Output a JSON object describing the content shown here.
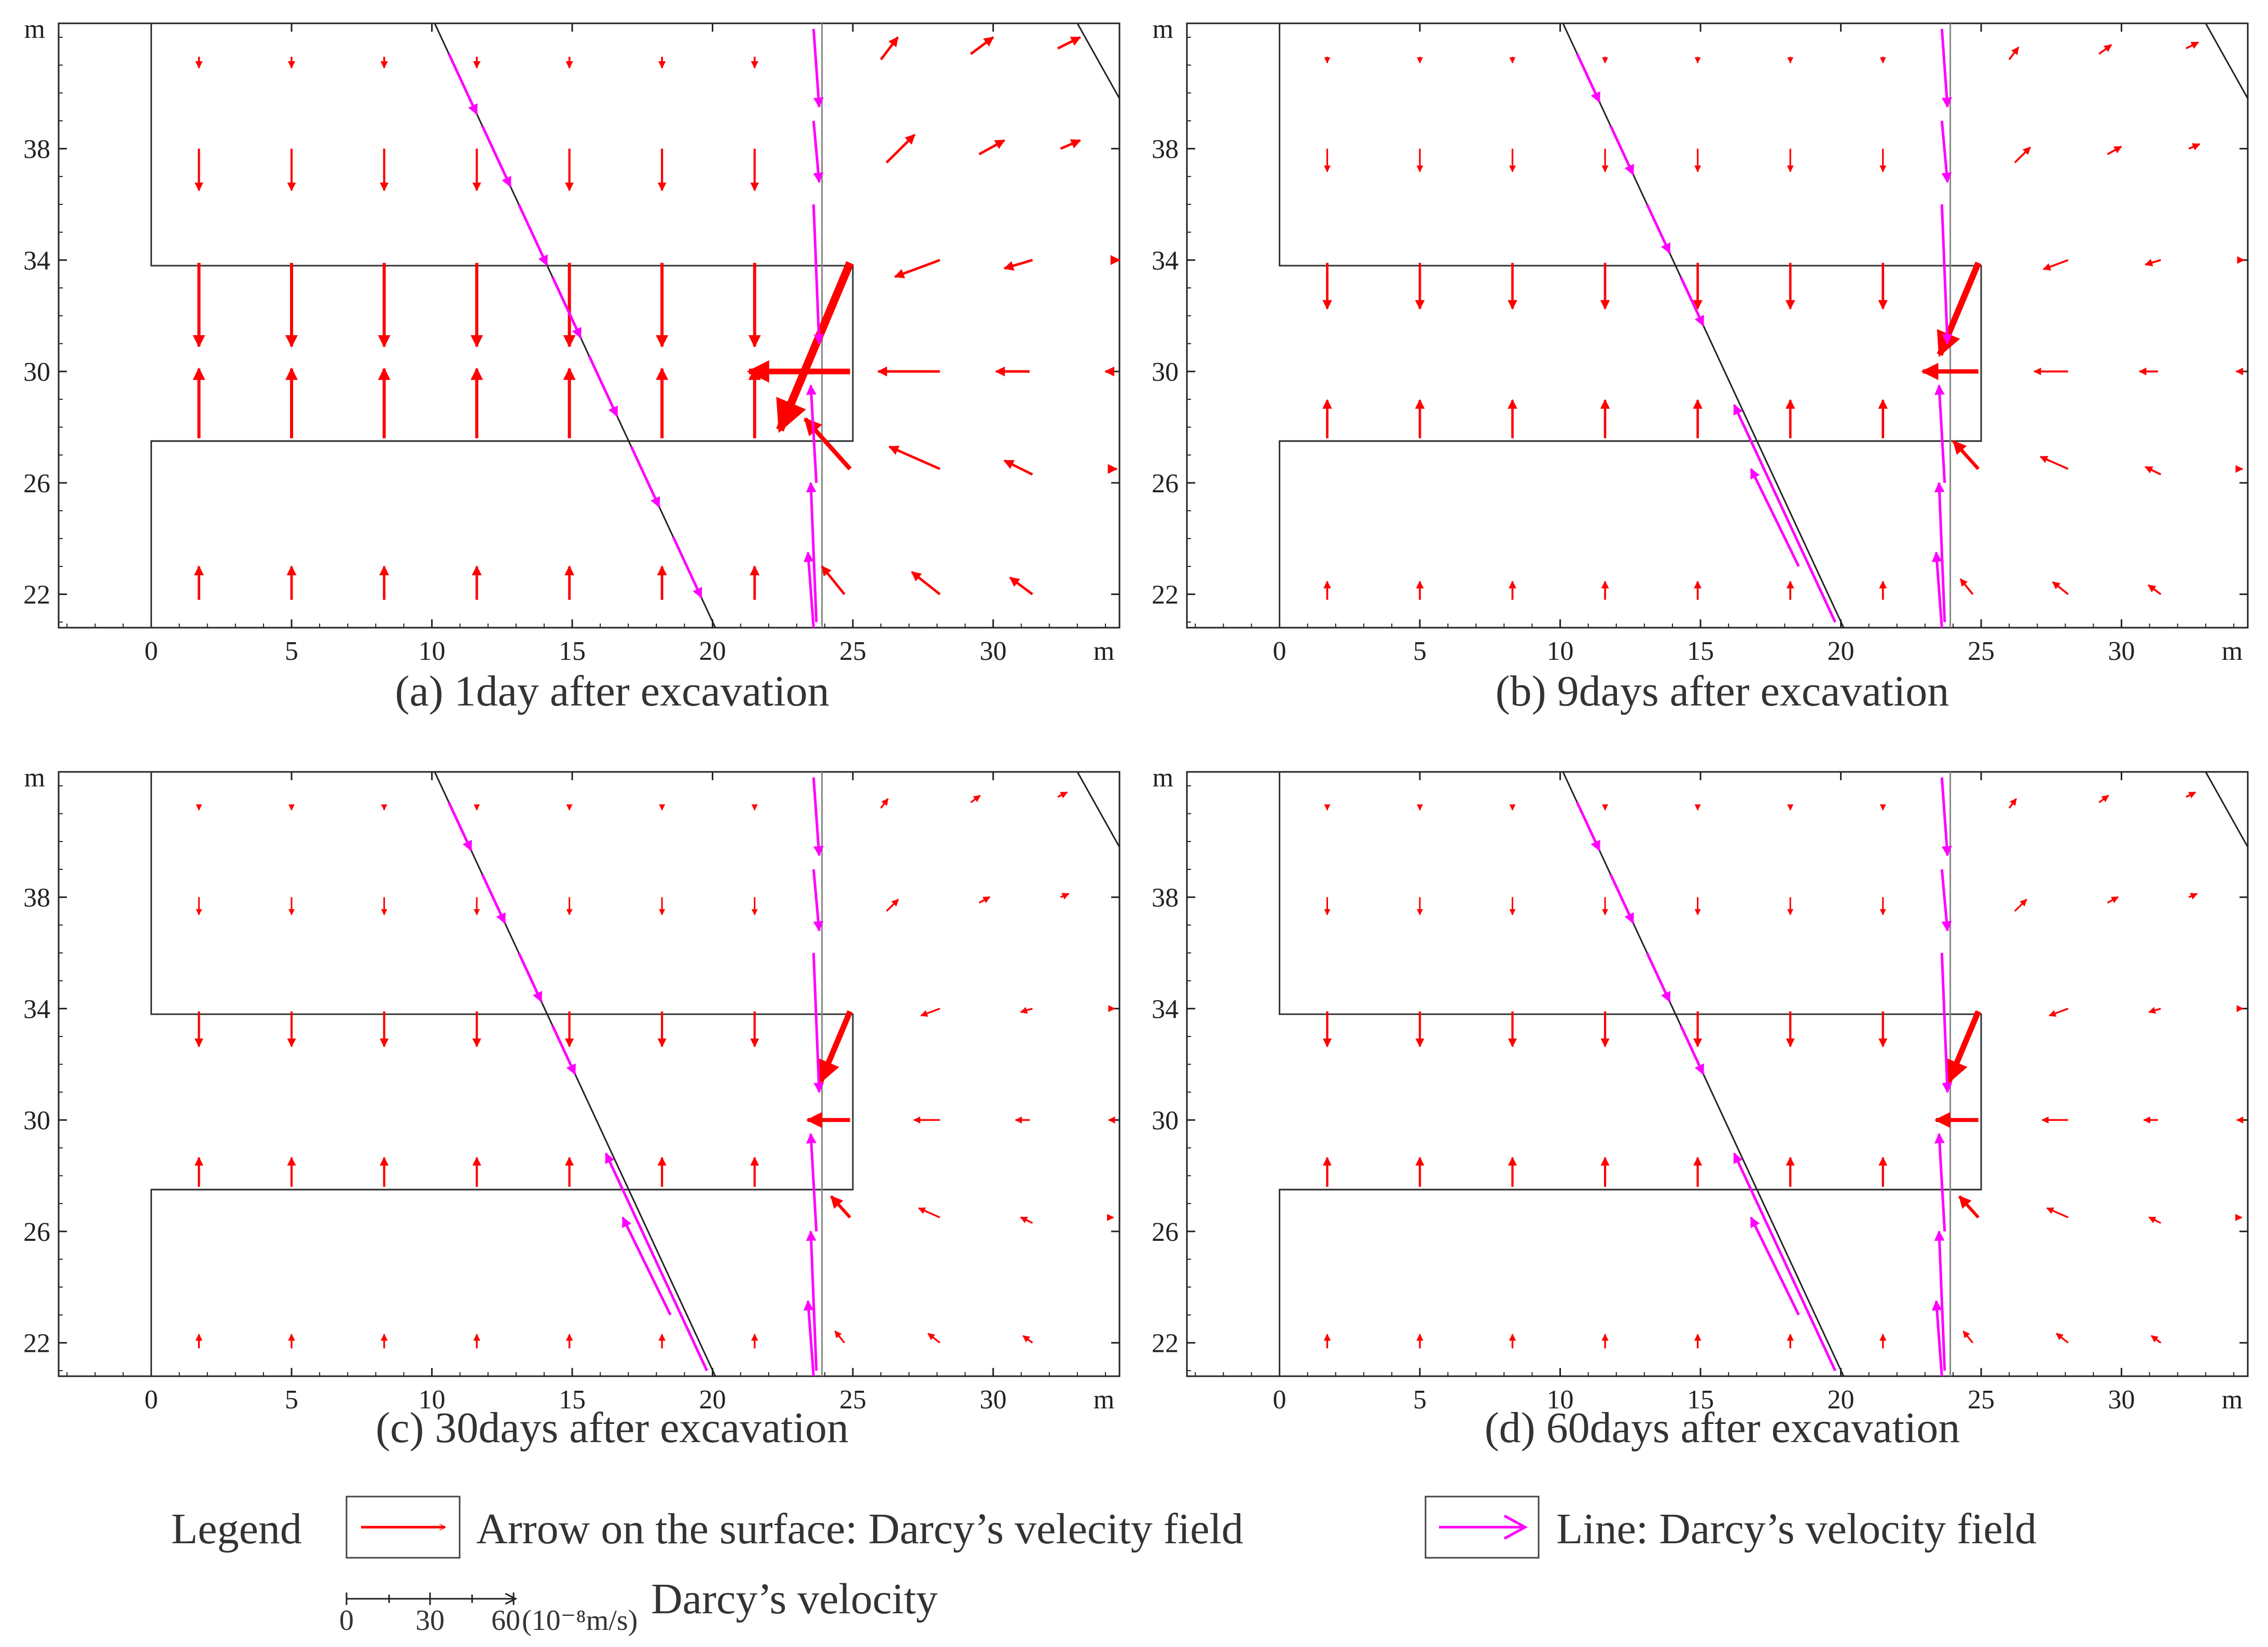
{
  "colors": {
    "surface": "#ff0000",
    "line": "#ff00ff",
    "frame": "#222222",
    "tick": "#222222"
  },
  "chart_data": [
    {
      "type": "vector-field",
      "panel": "a",
      "caption": "(a)  1day after excavation",
      "xlabel": "m",
      "ylabel": "m",
      "xlim": [
        -3.3,
        34.5
      ],
      "ylim": [
        20.8,
        42.5
      ],
      "xticks": [
        "0",
        "5",
        "10",
        "15",
        "20",
        "25",
        "30"
      ],
      "yticks": [
        "22",
        "26",
        "30",
        "34",
        "38"
      ],
      "scale": 1.0
    },
    {
      "type": "vector-field",
      "panel": "b",
      "caption": "(b)  9days after excavation",
      "xlabel": "m",
      "ylabel": "m",
      "xlim": [
        -3.3,
        34.5
      ],
      "ylim": [
        20.8,
        42.5
      ],
      "xticks": [
        "0",
        "5",
        "10",
        "15",
        "20",
        "25",
        "30"
      ],
      "yticks": [
        "22",
        "26",
        "30",
        "34",
        "38"
      ],
      "scale": 0.55
    },
    {
      "type": "vector-field",
      "panel": "c",
      "caption": "(c)  30days after excavation",
      "xlabel": "m",
      "ylabel": "m",
      "xlim": [
        -3.3,
        34.5
      ],
      "ylim": [
        20.8,
        42.5
      ],
      "xticks": [
        "0",
        "5",
        "10",
        "15",
        "20",
        "25",
        "30"
      ],
      "yticks": [
        "22",
        "26",
        "30",
        "34",
        "38"
      ],
      "scale": 0.42
    },
    {
      "type": "vector-field",
      "panel": "d",
      "caption": "(d)  60days after excavation",
      "xlabel": "m",
      "ylabel": "m",
      "xlim": [
        -3.3,
        34.5
      ],
      "ylim": [
        20.8,
        42.5
      ],
      "xticks": [
        "0",
        "5",
        "10",
        "15",
        "20",
        "25",
        "30"
      ],
      "yticks": [
        "22",
        "26",
        "30",
        "34",
        "38"
      ],
      "scale": 0.42
    }
  ],
  "legend": {
    "title": "Legend",
    "item1": "Arrow on the surface: Darcy’s velecity field",
    "item2": "Line: Darcy’s velocity field"
  },
  "scale_bar": {
    "ticks": [
      "0",
      "30",
      "60"
    ],
    "unit_label": "(10⁻⁸m/s)",
    "name": "Darcy’s velocity"
  }
}
